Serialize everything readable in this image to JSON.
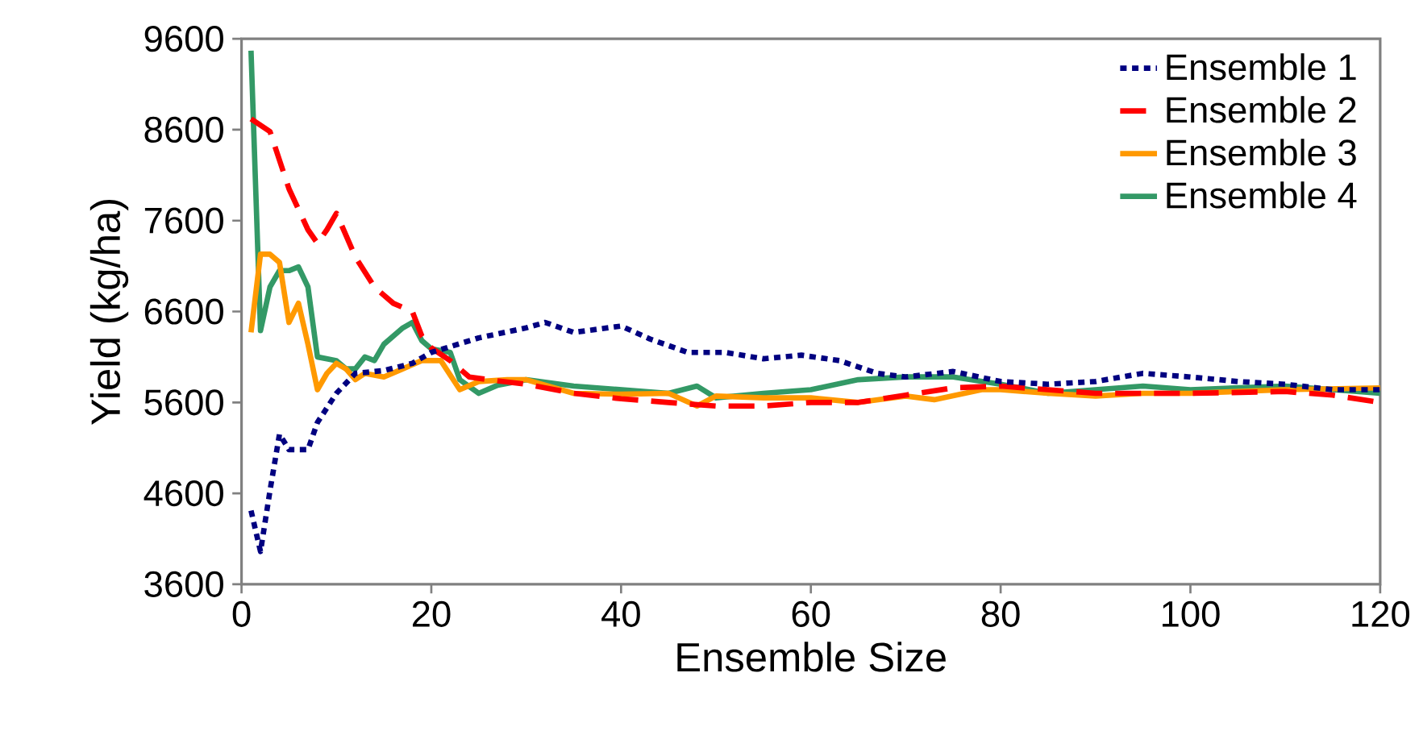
{
  "chart_data": {
    "type": "line",
    "xlabel": "Ensemble Size",
    "ylabel": "Yield (kg/ha)",
    "xlim": [
      0,
      120
    ],
    "xticks": [
      0,
      20,
      40,
      60,
      80,
      100,
      120
    ],
    "ylim": [
      3600,
      9600
    ],
    "yticks": [
      3600,
      4600,
      5600,
      6600,
      7600,
      8600,
      9600
    ],
    "legend": "top right",
    "grid": false,
    "marker": "none",
    "series": [
      {
        "name": "Ensemble 1",
        "color": "#000080",
        "line_style": "dotted",
        "x": [
          1,
          2,
          3,
          4,
          5,
          7,
          8,
          10,
          12,
          15,
          18,
          20,
          25,
          30,
          32,
          35,
          40,
          43,
          47,
          51,
          55,
          59,
          63,
          67,
          70,
          75,
          80,
          85,
          90,
          95,
          100,
          105,
          110,
          115,
          120
        ],
        "values": [
          4410,
          3960,
          4630,
          5250,
          5080,
          5080,
          5380,
          5700,
          5920,
          5950,
          6030,
          6150,
          6310,
          6420,
          6480,
          6370,
          6440,
          6300,
          6150,
          6150,
          6080,
          6120,
          6060,
          5920,
          5880,
          5940,
          5830,
          5800,
          5830,
          5920,
          5880,
          5830,
          5800,
          5740,
          5740
        ]
      },
      {
        "name": "Ensemble 2",
        "color": "#ff0000",
        "line_style": "dashed",
        "x": [
          1,
          3,
          5,
          7,
          8,
          9,
          10,
          12,
          14,
          16,
          18,
          19,
          20,
          22,
          24,
          26,
          30,
          35,
          40,
          45,
          50,
          55,
          60,
          65,
          70,
          75,
          80,
          90,
          100,
          110,
          115,
          120
        ],
        "values": [
          8720,
          8580,
          7950,
          7500,
          7350,
          7500,
          7680,
          7200,
          6870,
          6690,
          6600,
          6330,
          6200,
          6060,
          5880,
          5850,
          5800,
          5700,
          5640,
          5600,
          5560,
          5560,
          5600,
          5600,
          5680,
          5760,
          5780,
          5700,
          5700,
          5720,
          5680,
          5600
        ]
      },
      {
        "name": "Ensemble 3",
        "color": "#ff9900",
        "line_style": "solid",
        "x": [
          1,
          2,
          3,
          4,
          5,
          6,
          7,
          8,
          9,
          10,
          11,
          12,
          13,
          15,
          17,
          19,
          21,
          23,
          25,
          28,
          30,
          35,
          40,
          45,
          48,
          50,
          55,
          60,
          65,
          70,
          73,
          78,
          80,
          85,
          90,
          95,
          100,
          110,
          120
        ],
        "values": [
          6370,
          7230,
          7230,
          7140,
          6480,
          6690,
          6240,
          5740,
          5920,
          6030,
          5970,
          5850,
          5920,
          5880,
          5970,
          6060,
          6060,
          5740,
          5830,
          5850,
          5850,
          5700,
          5690,
          5700,
          5560,
          5670,
          5650,
          5650,
          5600,
          5670,
          5630,
          5740,
          5740,
          5700,
          5670,
          5700,
          5700,
          5740,
          5760
        ]
      },
      {
        "name": "Ensemble 4",
        "color": "#339966",
        "line_style": "solid",
        "x": [
          1,
          2,
          3,
          4,
          5,
          6,
          7,
          8,
          10,
          11,
          12,
          13,
          14,
          15,
          17,
          18,
          19,
          20,
          22,
          23,
          25,
          27,
          30,
          35,
          40,
          45,
          48,
          50,
          55,
          60,
          65,
          70,
          75,
          80,
          85,
          90,
          95,
          100,
          110,
          120
        ],
        "values": [
          9470,
          6390,
          6870,
          7050,
          7050,
          7090,
          6870,
          6100,
          6060,
          5970,
          5970,
          6100,
          6060,
          6240,
          6420,
          6480,
          6280,
          6190,
          6150,
          5850,
          5700,
          5790,
          5850,
          5780,
          5740,
          5700,
          5780,
          5650,
          5700,
          5740,
          5850,
          5880,
          5880,
          5800,
          5700,
          5740,
          5780,
          5740,
          5780,
          5700
        ]
      }
    ]
  }
}
